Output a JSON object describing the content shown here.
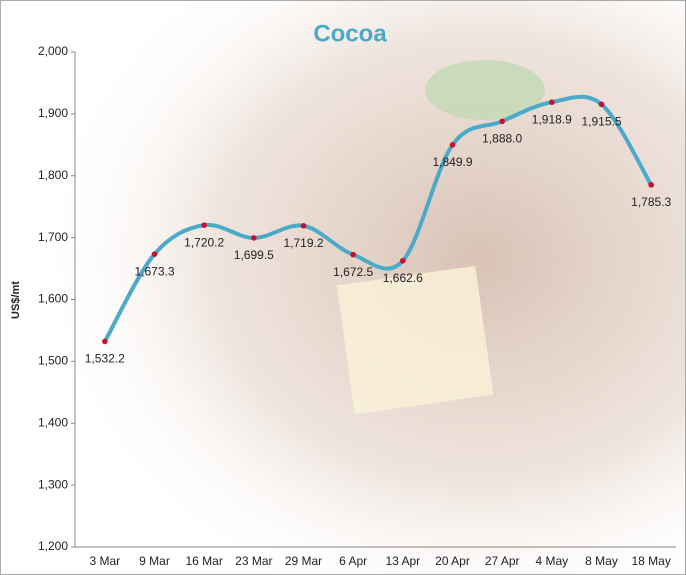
{
  "chart_data": {
    "type": "line",
    "title": "Cocoa",
    "ylabel": "US$/mt",
    "categories": [
      "3 Mar",
      "9 Mar",
      "16 Mar",
      "23 Mar",
      "29 Mar",
      "6 Apr",
      "13 Apr",
      "20 Apr",
      "27 Apr",
      "4 May",
      "8 May",
      "18 May"
    ],
    "series": [
      {
        "name": "Cocoa",
        "color": "#4aaac8",
        "marker_color": "#c8102e",
        "values": [
          1532.2,
          1673.3,
          1720.2,
          1699.5,
          1719.2,
          1672.5,
          1662.6,
          1849.9,
          1888.0,
          1918.9,
          1915.5,
          1785.3
        ],
        "value_labels": [
          "1,532.2",
          "1,673.3",
          "1,720.2",
          "1,699.5",
          "1,719.2",
          "1,672.5",
          "1,662.6",
          "1,849.9",
          "1,888.0",
          "1,918.9",
          "1,915.5",
          "1,785.3"
        ]
      }
    ],
    "ylim": [
      1200,
      2000
    ],
    "yticks": [
      {
        "value": 1200,
        "label": "1,200"
      },
      {
        "value": 1300,
        "label": "1,300"
      },
      {
        "value": 1400,
        "label": "1,400"
      },
      {
        "value": 1500,
        "label": "1,500"
      },
      {
        "value": 1600,
        "label": "1,600"
      },
      {
        "value": 1700,
        "label": "1,700"
      },
      {
        "value": 1800,
        "label": "1,800"
      },
      {
        "value": 1900,
        "label": "1,900"
      },
      {
        "value": 2000,
        "label": "2,000"
      }
    ],
    "grid": false,
    "smooth": true
  }
}
